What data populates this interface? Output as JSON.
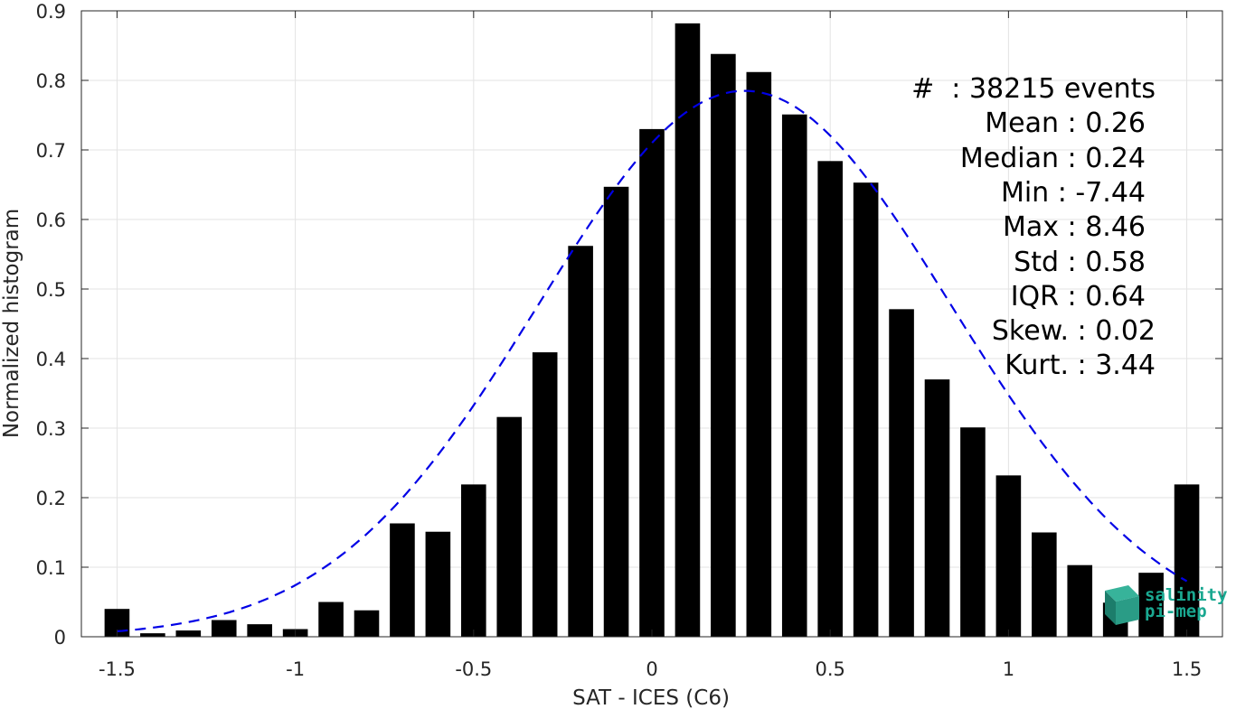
{
  "chart_data": {
    "type": "bar",
    "xlabel": "SAT - ICES (C6)",
    "ylabel": "Normalized histogram",
    "xlim": [
      -1.6,
      1.6
    ],
    "ylim": [
      0,
      0.9
    ],
    "xticks": [
      "-1.5",
      "-1",
      "-0.5",
      "0",
      "0.5",
      "1",
      "1.5"
    ],
    "xtick_values": [
      -1.5,
      -1,
      -0.5,
      0,
      0.5,
      1,
      1.5
    ],
    "yticks": [
      "0",
      "0.1",
      "0.2",
      "0.3",
      "0.4",
      "0.5",
      "0.6",
      "0.7",
      "0.8",
      "0.9"
    ],
    "ytick_values": [
      0,
      0.1,
      0.2,
      0.3,
      0.4,
      0.5,
      0.6,
      0.7,
      0.8,
      0.9
    ],
    "grid": true,
    "bin_width": 0.1,
    "bar_width_fraction": 0.7,
    "bars": {
      "x": [
        -1.5,
        -1.4,
        -1.3,
        -1.2,
        -1.1,
        -1.0,
        -0.9,
        -0.8,
        -0.7,
        -0.6,
        -0.5,
        -0.4,
        -0.3,
        -0.2,
        -0.1,
        0.0,
        0.1,
        0.2,
        0.3,
        0.4,
        0.5,
        0.6,
        0.7,
        0.8,
        0.9,
        1.0,
        1.1,
        1.2,
        1.3,
        1.4,
        1.5
      ],
      "values": [
        0.04,
        0.005,
        0.009,
        0.024,
        0.018,
        0.011,
        0.05,
        0.038,
        0.163,
        0.151,
        0.219,
        0.316,
        0.409,
        0.562,
        0.647,
        0.73,
        0.882,
        0.838,
        0.812,
        0.751,
        0.684,
        0.653,
        0.471,
        0.37,
        0.301,
        0.232,
        0.15,
        0.103,
        0.049,
        0.092,
        0.219
      ],
      "color": "#000000"
    },
    "fit_curve": {
      "style": "dashed",
      "color": "#0000e6",
      "mean": 0.26,
      "std": 0.58,
      "peak": 0.785,
      "x_range": [
        -1.5,
        1.5
      ]
    },
    "stats": [
      {
        "label": "#  : 38215 events"
      },
      {
        "label": "Mean : 0.26"
      },
      {
        "label": "Median : 0.24"
      },
      {
        "label": "Min : -7.44"
      },
      {
        "label": "Max : 8.46"
      },
      {
        "label": "Std : 0.58"
      },
      {
        "label": "IQR : 0.64"
      },
      {
        "label": "Skew. : 0.02"
      },
      {
        "label": "Kurt. : 3.44"
      }
    ]
  },
  "logo": {
    "line1": "salinity",
    "line2": "pi-mep",
    "color": "#1aa891"
  }
}
